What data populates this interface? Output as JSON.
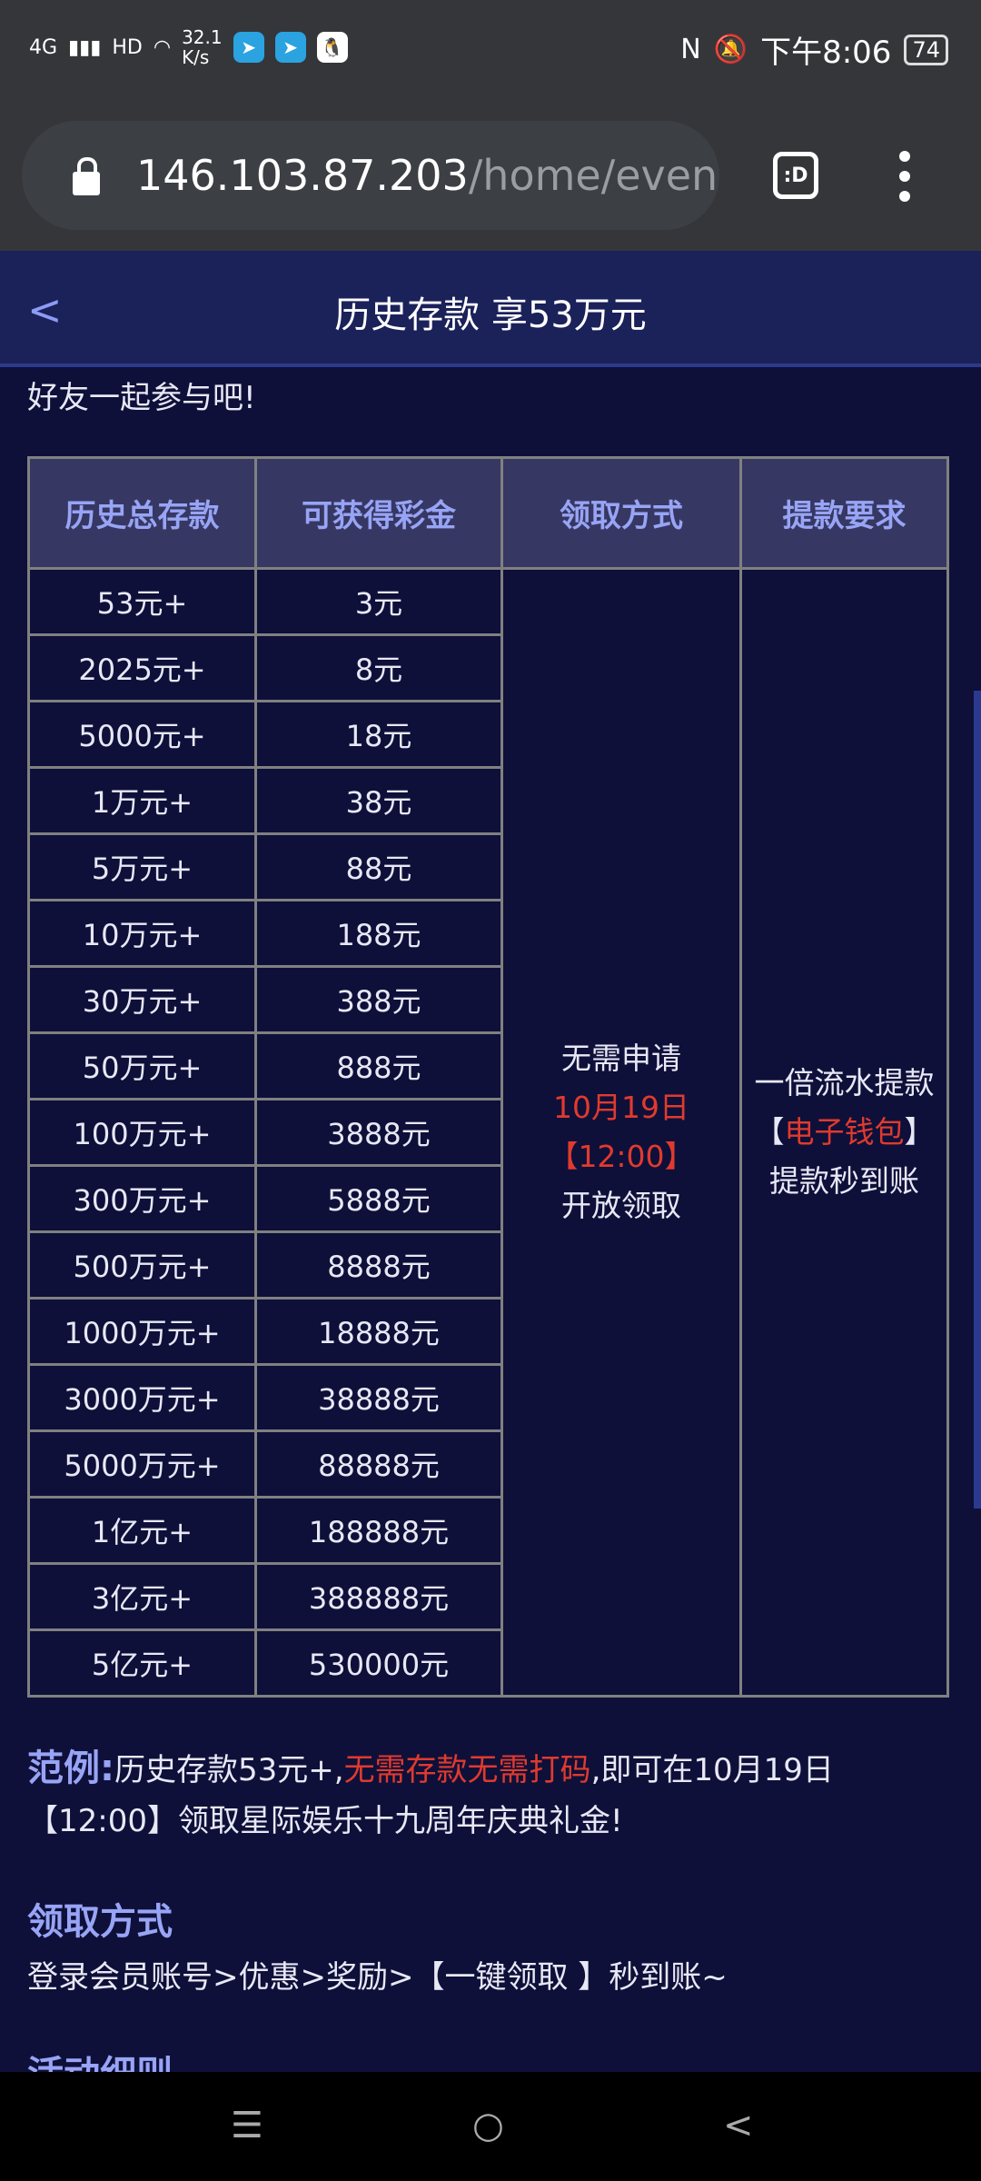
{
  "status": {
    "network": "4G",
    "speed": "32.1",
    "speed_unit": "K/s",
    "time": "下午8:06",
    "battery": "74",
    "icons": [
      "signal-icon",
      "hd-icon",
      "wifi-icon",
      "telegram-icon",
      "telegram-icon",
      "qq-icon",
      "nfc-icon",
      "mute-icon"
    ]
  },
  "browser": {
    "url_host": "146.103.87.203",
    "url_path": "/home/event",
    "tab_label": ":D"
  },
  "header": {
    "title": "历史存款 享53万元"
  },
  "intro": "好友一起参与吧!",
  "table": {
    "headers": [
      "历史总存款",
      "可获得彩金",
      "领取方式",
      "提款要求"
    ],
    "rows": [
      [
        "53元+",
        "3元"
      ],
      [
        "2025元+",
        "8元"
      ],
      [
        "5000元+",
        "18元"
      ],
      [
        "1万元+",
        "38元"
      ],
      [
        "5万元+",
        "88元"
      ],
      [
        "10万元+",
        "188元"
      ],
      [
        "30万元+",
        "388元"
      ],
      [
        "50万元+",
        "888元"
      ],
      [
        "100万元+",
        "3888元"
      ],
      [
        "300万元+",
        "5888元"
      ],
      [
        "500万元+",
        "8888元"
      ],
      [
        "1000万元+",
        "18888元"
      ],
      [
        "3000万元+",
        "38888元"
      ],
      [
        "5000万元+",
        "88888元"
      ],
      [
        "1亿元+",
        "188888元"
      ],
      [
        "3亿元+",
        "388888元"
      ],
      [
        "5亿元+",
        "530000元"
      ]
    ],
    "method": {
      "line1": "无需申请",
      "line2": "10月19日",
      "line3": "【12:00】",
      "line4": "开放领取"
    },
    "withdraw": {
      "line1": "一倍流水提款",
      "bracket_open": "【",
      "highlight": "电子钱包",
      "bracket_close": "】",
      "line3": "提款秒到账"
    }
  },
  "example": {
    "label": "范例:",
    "text1": "历史存款53元+,",
    "highlight": "无需存款无需打码",
    "text2": ",即可在10月19日【12:00】领取星际娱乐十九周年庆典礼金!"
  },
  "claim": {
    "heading": "领取方式",
    "text": "登录会员账号>优惠>奖励>【一键领取 】秒到账~"
  },
  "rules": {
    "heading": "活动细则"
  },
  "colors": {
    "bg": "#0e1039",
    "header": "#1b2159",
    "accent": "#98a4f5",
    "red": "#e03a2e"
  }
}
